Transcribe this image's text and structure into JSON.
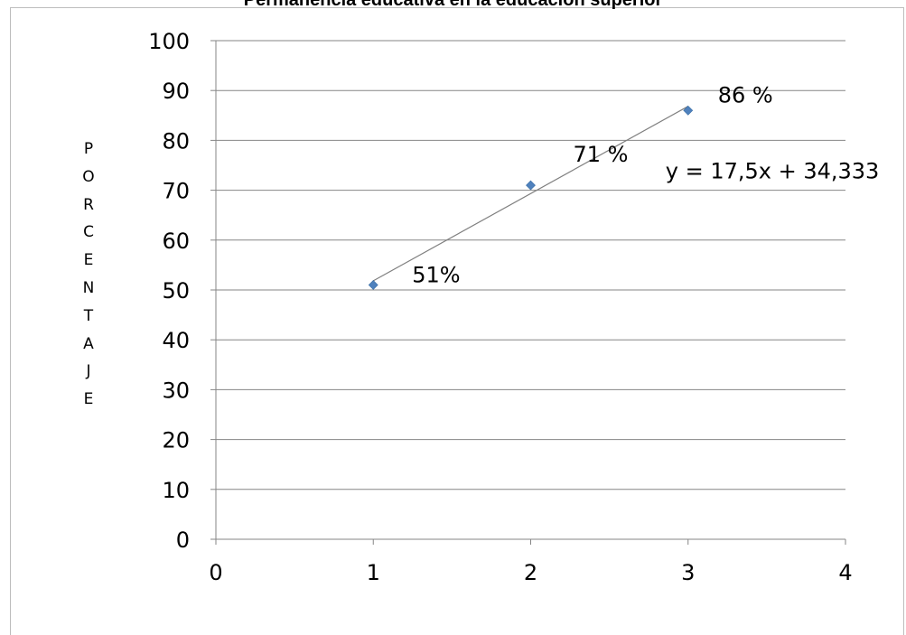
{
  "chart_data": {
    "type": "scatter",
    "title": "Permanencia educativa en la educación superior",
    "xlabel": "",
    "ylabel": "PORCENTAJE",
    "xlim": [
      0,
      4
    ],
    "ylim": [
      0,
      100
    ],
    "xticks": [
      "0",
      "1",
      "2",
      "3",
      "4"
    ],
    "yticks": [
      "0",
      "10",
      "20",
      "30",
      "40",
      "50",
      "60",
      "70",
      "80",
      "90",
      "100"
    ],
    "grid": true,
    "legend": "none",
    "series": [
      {
        "x": [
          1,
          2,
          3
        ],
        "y": [
          51,
          71,
          86
        ],
        "labels": [
          "51%",
          "71 %",
          "86 %"
        ],
        "color": "#4F81BD",
        "marker": "diamond"
      }
    ],
    "trendline": {
      "type": "linear",
      "slope": 17.5,
      "intercept": 34.333,
      "equation": "y = 17,5x + 34,333",
      "x_range": [
        1,
        3
      ],
      "color": "#7f7f7f"
    }
  }
}
